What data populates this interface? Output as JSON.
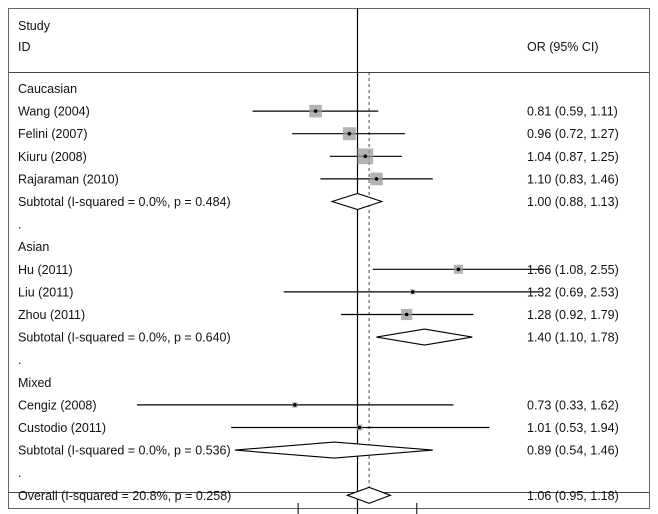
{
  "chart_data": {
    "type": "forest",
    "header": {
      "study_label": "Study",
      "id_label": "ID",
      "effect_label": "OR (95% CI)"
    },
    "reference_line": 1.0,
    "overall_line": 1.06,
    "scale": "log",
    "xlim": [
      0.33,
      3.0
    ],
    "rows": [
      {
        "kind": "group",
        "label": "Caucasian"
      },
      {
        "kind": "study",
        "label": "Wang (2004)",
        "or": 0.81,
        "lo": 0.59,
        "hi": 1.11,
        "ci_text": "0.81 (0.59, 1.11)",
        "weight": 3.2
      },
      {
        "kind": "study",
        "label": "Felini (2007)",
        "or": 0.96,
        "lo": 0.72,
        "hi": 1.27,
        "ci_text": "0.96 (0.72, 1.27)",
        "weight": 3.4
      },
      {
        "kind": "study",
        "label": "Kiuru (2008)",
        "or": 1.04,
        "lo": 0.87,
        "hi": 1.25,
        "ci_text": "1.04 (0.87, 1.25)",
        "weight": 5.0
      },
      {
        "kind": "study",
        "label": "Rajaraman (2010)",
        "or": 1.1,
        "lo": 0.83,
        "hi": 1.46,
        "ci_text": "1.10 (0.83, 1.46)",
        "weight": 3.2
      },
      {
        "kind": "subtotal",
        "label": "Subtotal  (I-squared = 0.0%, p = 0.484)",
        "or": 1.0,
        "lo": 0.88,
        "hi": 1.13,
        "ci_text": "1.00 (0.88, 1.13)"
      },
      {
        "kind": "dot",
        "label": "."
      },
      {
        "kind": "group",
        "label": "Asian"
      },
      {
        "kind": "study",
        "label": "Hu (2011)",
        "or": 1.66,
        "lo": 1.08,
        "hi": 2.55,
        "ci_text": "1.66 (1.08, 2.55)",
        "weight": 1.7
      },
      {
        "kind": "study",
        "label": "Liu (2011)",
        "or": 1.32,
        "lo": 0.69,
        "hi": 2.53,
        "ci_text": "1.32 (0.69, 2.53)",
        "weight": 0.5
      },
      {
        "kind": "study",
        "label": "Zhou (2011)",
        "or": 1.28,
        "lo": 0.92,
        "hi": 1.79,
        "ci_text": "1.28 (0.92, 1.79)",
        "weight": 2.5
      },
      {
        "kind": "subtotal",
        "label": "Subtotal  (I-squared = 0.0%, p = 0.640)",
        "or": 1.4,
        "lo": 1.1,
        "hi": 1.78,
        "ci_text": "1.40 (1.10, 1.78)"
      },
      {
        "kind": "dot",
        "label": "."
      },
      {
        "kind": "group",
        "label": "Mixed"
      },
      {
        "kind": "study",
        "label": "Cengiz (2008)",
        "or": 0.73,
        "lo": 0.33,
        "hi": 1.62,
        "ci_text": "0.73 (0.33, 1.62)",
        "weight": 0.6
      },
      {
        "kind": "study",
        "label": "Custodio (2011)",
        "or": 1.01,
        "lo": 0.53,
        "hi": 1.94,
        "ci_text": "1.01 (0.53, 1.94)",
        "weight": 0.7
      },
      {
        "kind": "subtotal",
        "label": "Subtotal  (I-squared = 0.0%, p = 0.536)",
        "or": 0.89,
        "lo": 0.54,
        "hi": 1.46,
        "ci_text": "0.89 (0.54, 1.46)"
      },
      {
        "kind": "dot",
        "label": "."
      },
      {
        "kind": "overall",
        "label": "Overall  (I-squared = 20.8%, p = 0.258)",
        "or": 1.06,
        "lo": 0.95,
        "hi": 1.18,
        "ci_text": "1.06 (0.95, 1.18)"
      }
    ]
  }
}
